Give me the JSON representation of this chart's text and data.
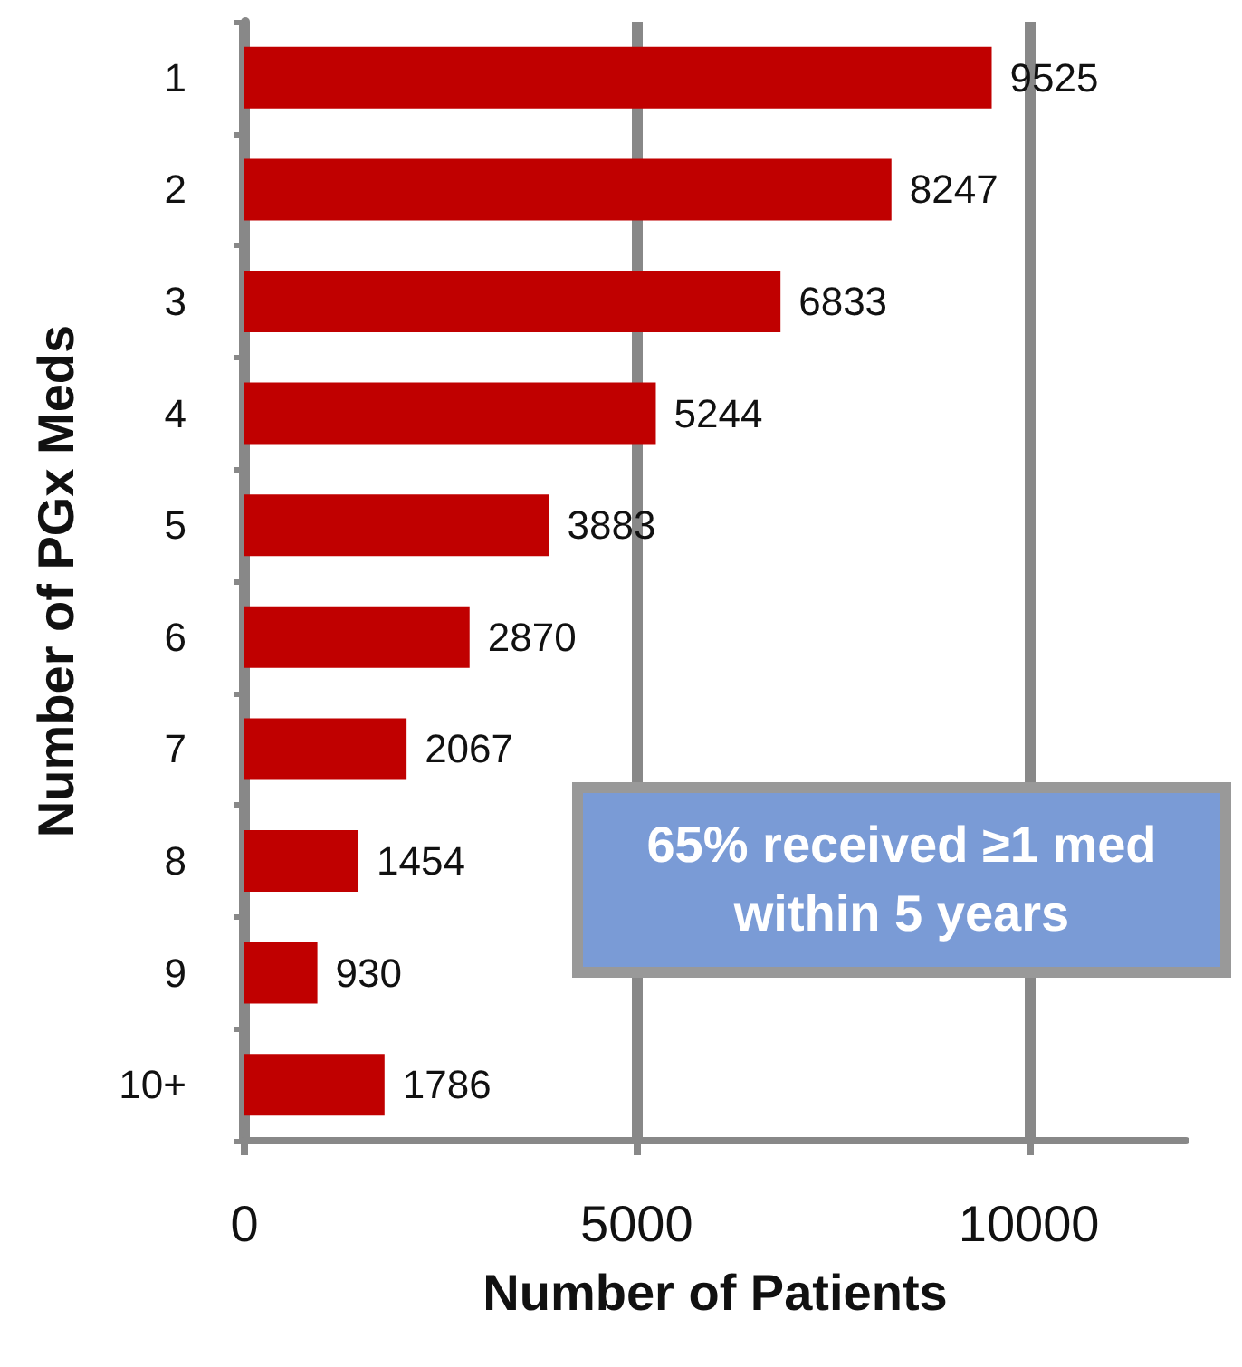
{
  "chart_data": {
    "type": "bar",
    "orientation": "horizontal",
    "xlabel": "Number of Patients",
    "ylabel": "Number of PGx Meds",
    "categories": [
      "1",
      "2",
      "3",
      "4",
      "5",
      "6",
      "7",
      "8",
      "9",
      "10+"
    ],
    "values": [
      9525,
      8247,
      6833,
      5244,
      3883,
      2870,
      2067,
      1454,
      930,
      1786
    ],
    "color": "#c00000",
    "data_labels": true,
    "xlim": [
      0,
      12000
    ],
    "xticks": [
      0,
      5000,
      10000
    ],
    "grid": "x",
    "annotations": [
      "65% received ≥1 med within 5 years"
    ]
  }
}
